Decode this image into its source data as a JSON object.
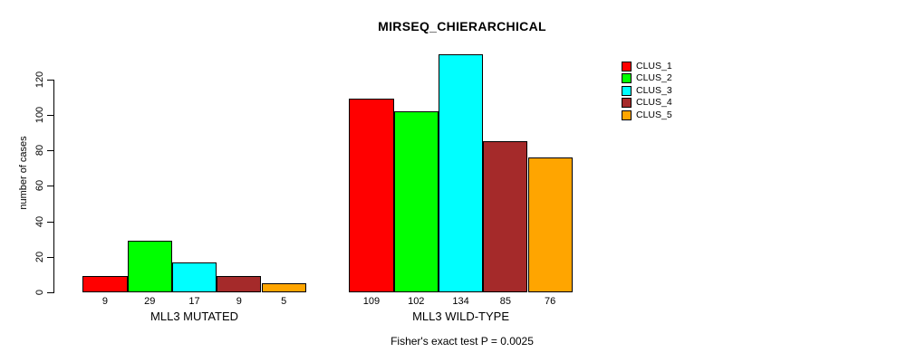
{
  "chart_data": {
    "type": "bar",
    "title": "MIRSEQ_CHIERARCHICAL",
    "ylabel": "number of cases",
    "xlabel": "",
    "annotation": "Fisher's exact test P = 0.0025",
    "yticks": [
      0,
      20,
      40,
      60,
      80,
      100,
      120
    ],
    "ylim": [
      0,
      140
    ],
    "grid": false,
    "legend_position": "right",
    "background_color": "#ffffff",
    "bar_border_color": "#000000",
    "series": [
      {
        "name": "CLUS_1",
        "color": "#FF0000"
      },
      {
        "name": "CLUS_2",
        "color": "#00FF00"
      },
      {
        "name": "CLUS_3",
        "color": "#00FFFF"
      },
      {
        "name": "CLUS_4",
        "color": "#A52A2A"
      },
      {
        "name": "CLUS_5",
        "color": "#FFA500"
      }
    ],
    "groups": [
      {
        "label": "MLL3 MUTATED",
        "values": [
          9,
          29,
          17,
          9,
          5
        ]
      },
      {
        "label": "MLL3 WILD-TYPE",
        "values": [
          109,
          102,
          134,
          85,
          76
        ]
      }
    ]
  }
}
